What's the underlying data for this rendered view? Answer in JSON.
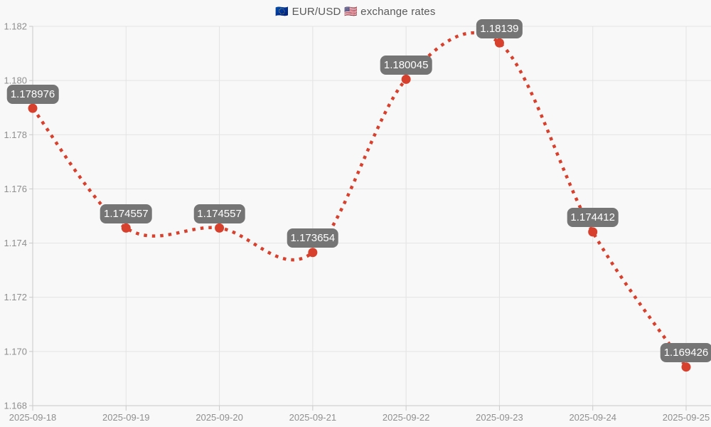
{
  "chart_data": {
    "type": "line",
    "title": "🇪🇺 EUR/USD 🇺🇸 exchange rates",
    "categories": [
      "2025-09-18",
      "2025-09-19",
      "2025-09-20",
      "2025-09-21",
      "2025-09-22",
      "2025-09-23",
      "2025-09-24",
      "2025-09-25"
    ],
    "values": [
      1.178976,
      1.174557,
      1.174557,
      1.173654,
      1.180045,
      1.18139,
      1.174412,
      1.169426
    ],
    "point_labels": [
      "1.178976",
      "1.174557",
      "1.174557",
      "1.173654",
      "1.180045",
      "1.18139",
      "1.174412",
      "1.169426"
    ],
    "xlabel": "",
    "ylabel": "",
    "ylim": [
      1.168,
      1.182
    ],
    "yticks": [
      "1.182",
      "1.180",
      "1.178",
      "1.176",
      "1.174",
      "1.172",
      "1.170",
      "1.168"
    ],
    "grid": true,
    "legend": "none",
    "line_style": "dotted",
    "smoothing": "spline",
    "colors": {
      "line": "#d7402c",
      "point": "#d7402c",
      "label_bg": "#757575",
      "label_text": "#ffffff",
      "grid": "#e3e3e3",
      "spine": "#c9c9c9",
      "tick_text": "#8f8f8f",
      "title_text": "#595959",
      "background": "#f8f8f8"
    }
  }
}
